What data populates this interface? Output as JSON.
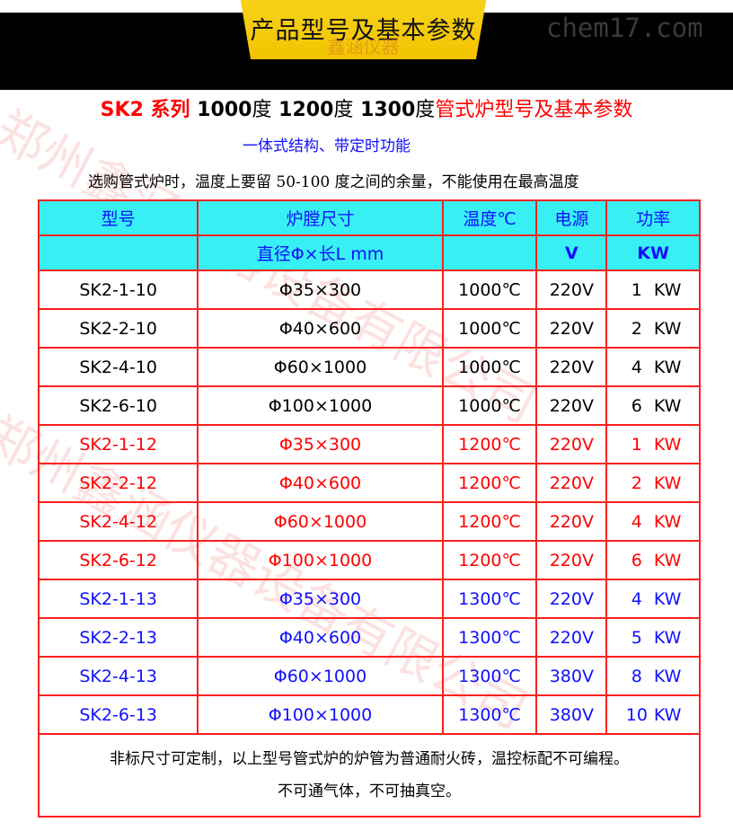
{
  "banner": {
    "title": "产品型号及基本参数",
    "watermark": "鑫涵仪器",
    "site": "chem17.com"
  },
  "heading": {
    "prefix": "SK2 系列",
    "t1": "1000",
    "d1": "度",
    "t2": "1200",
    "d2": "度",
    "t3": "1300",
    "d3": "度",
    "suffix": "管式炉型号及基本参数"
  },
  "subtitle": "一体式结构、带定时功能",
  "note": "选购管式炉时，温度上要留 50-100 度之间的余量，不能使用在最高温度",
  "watermark_text": "郑州鑫涵仪器设备有限公司",
  "table": {
    "headers": {
      "model": "型号",
      "size": "炉膛尺寸",
      "size_sub": "直径Φ×长L mm",
      "temp": "温度℃",
      "power_src": "电源",
      "power_src_unit": "V",
      "power": "功率",
      "power_unit": "KW"
    },
    "rows": [
      {
        "model": "SK2-1-10",
        "size": "Φ35×300",
        "temp": "1000℃",
        "volt": "220V",
        "kw": "1",
        "unit": "KW",
        "color": "#000000"
      },
      {
        "model": "SK2-2-10",
        "size": "Φ40×600",
        "temp": "1000℃",
        "volt": "220V",
        "kw": "2",
        "unit": "KW",
        "color": "#000000"
      },
      {
        "model": "SK2-4-10",
        "size": "Φ60×1000",
        "temp": "1000℃",
        "volt": "220V",
        "kw": "4",
        "unit": "KW",
        "color": "#000000"
      },
      {
        "model": "SK2-6-10",
        "size": "Φ100×1000",
        "temp": "1000℃",
        "volt": "220V",
        "kw": "6",
        "unit": "KW",
        "color": "#000000"
      },
      {
        "model": "SK2-1-12",
        "size": "Φ35×300",
        "temp": "1200℃",
        "volt": "220V",
        "kw": "1",
        "unit": "KW",
        "color": "#ff0000"
      },
      {
        "model": "SK2-2-12",
        "size": "Φ40×600",
        "temp": "1200℃",
        "volt": "220V",
        "kw": "2",
        "unit": "KW",
        "color": "#ff0000"
      },
      {
        "model": "SK2-4-12",
        "size": "Φ60×1000",
        "temp": "1200℃",
        "volt": "220V",
        "kw": "4",
        "unit": "KW",
        "color": "#ff0000"
      },
      {
        "model": "SK2-6-12",
        "size": "Φ100×1000",
        "temp": "1200℃",
        "volt": "220V",
        "kw": "6",
        "unit": "KW",
        "color": "#ff0000"
      },
      {
        "model": "SK2-1-13",
        "size": "Φ35×300",
        "temp": "1300℃",
        "volt": "220V",
        "kw": "4",
        "unit": "KW",
        "color": "#1010ff"
      },
      {
        "model": "SK2-2-13",
        "size": "Φ40×600",
        "temp": "1300℃",
        "volt": "220V",
        "kw": "5",
        "unit": "KW",
        "color": "#1010ff"
      },
      {
        "model": "SK2-4-13",
        "size": "Φ60×1000",
        "temp": "1300℃",
        "volt": "380V",
        "kw": "8",
        "unit": "KW",
        "color": "#1010ff"
      },
      {
        "model": "SK2-6-13",
        "size": "Φ100×1000",
        "temp": "1300℃",
        "volt": "380V",
        "kw": "10",
        "unit": "KW",
        "color": "#1010ff"
      }
    ],
    "footer_line1": "非标尺寸可定制，以上型号管式炉的炉管为普通耐火砖，温控标配不可编程。",
    "footer_line2": "不可通气体，不可抽真空。"
  }
}
